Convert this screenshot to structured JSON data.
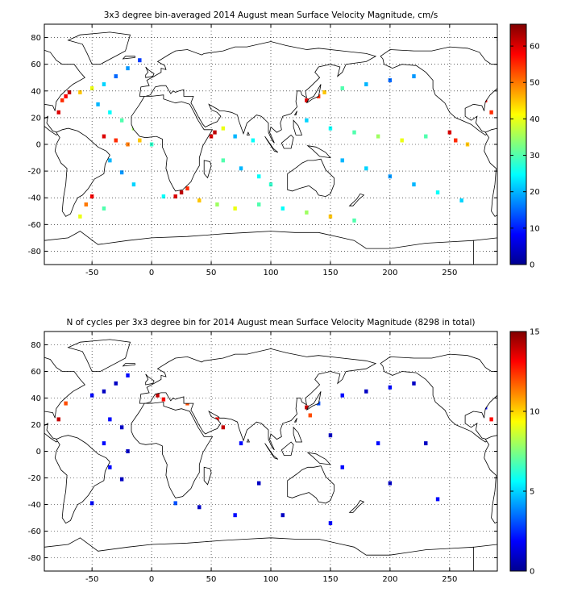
{
  "chart_data": [
    {
      "type": "heatmap",
      "title": "3x3 degree bin-averaged 2014 August mean Surface Velocity Magnitude, cm/s",
      "xlabel": "",
      "ylabel": "",
      "xlim": [
        -90,
        290
      ],
      "ylim": [
        -90,
        90
      ],
      "xticks": [
        -50,
        0,
        50,
        100,
        150,
        200,
        250
      ],
      "yticks": [
        80,
        60,
        40,
        20,
        0,
        -20,
        -40,
        -60,
        -80
      ],
      "grid": true,
      "colorbar": {
        "range": [
          0,
          66
        ],
        "ticks": [
          0,
          10,
          20,
          30,
          40,
          50,
          60
        ]
      },
      "bin_size_deg": 3,
      "cells": [
        {
          "lon": -78,
          "lat": 24,
          "value": 60
        },
        {
          "lon": -75,
          "lat": 33,
          "value": 55
        },
        {
          "lon": -72,
          "lat": 36,
          "value": 58
        },
        {
          "lon": -69,
          "lat": 39,
          "value": 62
        },
        {
          "lon": -60,
          "lat": 39,
          "value": 45
        },
        {
          "lon": -50,
          "lat": 42,
          "value": 40
        },
        {
          "lon": -40,
          "lat": 45,
          "value": 22
        },
        {
          "lon": -30,
          "lat": 51,
          "value": 15
        },
        {
          "lon": -20,
          "lat": 57,
          "value": 18
        },
        {
          "lon": -10,
          "lat": 63,
          "value": 12
        },
        {
          "lon": -45,
          "lat": 30,
          "value": 20
        },
        {
          "lon": -35,
          "lat": 24,
          "value": 25
        },
        {
          "lon": -25,
          "lat": 18,
          "value": 30
        },
        {
          "lon": -15,
          "lat": 12,
          "value": 35
        },
        {
          "lon": -40,
          "lat": 6,
          "value": 60
        },
        {
          "lon": -30,
          "lat": 3,
          "value": 55
        },
        {
          "lon": -20,
          "lat": 0,
          "value": 50
        },
        {
          "lon": -10,
          "lat": 3,
          "value": 45
        },
        {
          "lon": 0,
          "lat": 0,
          "value": 28
        },
        {
          "lon": -35,
          "lat": -12,
          "value": 20
        },
        {
          "lon": -25,
          "lat": -21,
          "value": 18
        },
        {
          "lon": -15,
          "lat": -30,
          "value": 22
        },
        {
          "lon": -50,
          "lat": -39,
          "value": 58
        },
        {
          "lon": -55,
          "lat": -45,
          "value": 50
        },
        {
          "lon": -60,
          "lat": -54,
          "value": 40
        },
        {
          "lon": -40,
          "lat": -48,
          "value": 30
        },
        {
          "lon": 10,
          "lat": -39,
          "value": 25
        },
        {
          "lon": 20,
          "lat": -39,
          "value": 60
        },
        {
          "lon": 25,
          "lat": -36,
          "value": 62
        },
        {
          "lon": 30,
          "lat": -33,
          "value": 55
        },
        {
          "lon": 40,
          "lat": -42,
          "value": 45
        },
        {
          "lon": 55,
          "lat": -45,
          "value": 35
        },
        {
          "lon": 70,
          "lat": -48,
          "value": 40
        },
        {
          "lon": 90,
          "lat": -45,
          "value": 30
        },
        {
          "lon": 110,
          "lat": -48,
          "value": 25
        },
        {
          "lon": 130,
          "lat": -51,
          "value": 35
        },
        {
          "lon": 150,
          "lat": -54,
          "value": 45
        },
        {
          "lon": 170,
          "lat": -57,
          "value": 30
        },
        {
          "lon": 50,
          "lat": 6,
          "value": 60
        },
        {
          "lon": 53,
          "lat": 9,
          "value": 62
        },
        {
          "lon": 60,
          "lat": 12,
          "value": 40
        },
        {
          "lon": 70,
          "lat": 6,
          "value": 20
        },
        {
          "lon": 85,
          "lat": 3,
          "value": 25
        },
        {
          "lon": 60,
          "lat": -12,
          "value": 30
        },
        {
          "lon": 75,
          "lat": -18,
          "value": 20
        },
        {
          "lon": 90,
          "lat": -24,
          "value": 25
        },
        {
          "lon": 100,
          "lat": -30,
          "value": 28
        },
        {
          "lon": 130,
          "lat": 33,
          "value": 60
        },
        {
          "lon": 140,
          "lat": 36,
          "value": 55
        },
        {
          "lon": 145,
          "lat": 39,
          "value": 45
        },
        {
          "lon": 160,
          "lat": 42,
          "value": 30
        },
        {
          "lon": 180,
          "lat": 45,
          "value": 20
        },
        {
          "lon": 200,
          "lat": 48,
          "value": 15
        },
        {
          "lon": 220,
          "lat": 51,
          "value": 18
        },
        {
          "lon": 130,
          "lat": 18,
          "value": 22
        },
        {
          "lon": 150,
          "lat": 12,
          "value": 25
        },
        {
          "lon": 170,
          "lat": 9,
          "value": 30
        },
        {
          "lon": 190,
          "lat": 6,
          "value": 35
        },
        {
          "lon": 210,
          "lat": 3,
          "value": 40
        },
        {
          "lon": 230,
          "lat": 6,
          "value": 30
        },
        {
          "lon": 250,
          "lat": 9,
          "value": 60
        },
        {
          "lon": 255,
          "lat": 3,
          "value": 55
        },
        {
          "lon": 265,
          "lat": 0,
          "value": 45
        },
        {
          "lon": 160,
          "lat": -12,
          "value": 20
        },
        {
          "lon": 180,
          "lat": -18,
          "value": 22
        },
        {
          "lon": 200,
          "lat": -24,
          "value": 18
        },
        {
          "lon": 220,
          "lat": -30,
          "value": 20
        },
        {
          "lon": 240,
          "lat": -36,
          "value": 25
        },
        {
          "lon": 260,
          "lat": -42,
          "value": 22
        },
        {
          "lon": 280,
          "lat": 33,
          "value": 60
        },
        {
          "lon": 285,
          "lat": 24,
          "value": 55
        }
      ]
    },
    {
      "type": "heatmap",
      "title": "N of cycles per 3x3 degree bin for 2014 August mean Surface Velocity Magnitude (8298 in total)",
      "xlabel": "",
      "ylabel": "",
      "xlim": [
        -90,
        290
      ],
      "ylim": [
        -90,
        90
      ],
      "xticks": [
        -50,
        0,
        50,
        100,
        150,
        200,
        250
      ],
      "yticks": [
        80,
        60,
        40,
        20,
        0,
        -20,
        -40,
        -60,
        -80
      ],
      "grid": true,
      "colorbar": {
        "range": [
          0,
          15
        ],
        "ticks": [
          0,
          5,
          10,
          15
        ]
      },
      "bin_size_deg": 3,
      "cells": [
        {
          "lon": -78,
          "lat": 24,
          "value": 14
        },
        {
          "lon": -72,
          "lat": 36,
          "value": 12
        },
        {
          "lon": -50,
          "lat": 42,
          "value": 2
        },
        {
          "lon": -40,
          "lat": 45,
          "value": 1
        },
        {
          "lon": -30,
          "lat": 51,
          "value": 1
        },
        {
          "lon": -20,
          "lat": 57,
          "value": 2
        },
        {
          "lon": 5,
          "lat": 42,
          "value": 14
        },
        {
          "lon": 10,
          "lat": 39,
          "value": 13
        },
        {
          "lon": 30,
          "lat": 36,
          "value": 12
        },
        {
          "lon": 35,
          "lat": 42,
          "value": 14
        },
        {
          "lon": -35,
          "lat": 24,
          "value": 2
        },
        {
          "lon": -25,
          "lat": 18,
          "value": 1
        },
        {
          "lon": -40,
          "lat": 6,
          "value": 2
        },
        {
          "lon": -20,
          "lat": 0,
          "value": 1
        },
        {
          "lon": -35,
          "lat": -12,
          "value": 2
        },
        {
          "lon": -25,
          "lat": -21,
          "value": 1
        },
        {
          "lon": -50,
          "lat": -39,
          "value": 2
        },
        {
          "lon": 20,
          "lat": -39,
          "value": 3
        },
        {
          "lon": 40,
          "lat": -42,
          "value": 1
        },
        {
          "lon": 70,
          "lat": -48,
          "value": 2
        },
        {
          "lon": 110,
          "lat": -48,
          "value": 1
        },
        {
          "lon": 150,
          "lat": -54,
          "value": 2
        },
        {
          "lon": 55,
          "lat": 24,
          "value": 13
        },
        {
          "lon": 60,
          "lat": 18,
          "value": 14
        },
        {
          "lon": 75,
          "lat": 6,
          "value": 2
        },
        {
          "lon": 90,
          "lat": -24,
          "value": 1
        },
        {
          "lon": 130,
          "lat": 33,
          "value": 14
        },
        {
          "lon": 133,
          "lat": 27,
          "value": 12
        },
        {
          "lon": 140,
          "lat": 36,
          "value": 3
        },
        {
          "lon": 160,
          "lat": 42,
          "value": 2
        },
        {
          "lon": 180,
          "lat": 45,
          "value": 1
        },
        {
          "lon": 200,
          "lat": 48,
          "value": 2
        },
        {
          "lon": 220,
          "lat": 51,
          "value": 1
        },
        {
          "lon": 150,
          "lat": 12,
          "value": 1
        },
        {
          "lon": 190,
          "lat": 6,
          "value": 2
        },
        {
          "lon": 230,
          "lat": 6,
          "value": 1
        },
        {
          "lon": 160,
          "lat": -12,
          "value": 2
        },
        {
          "lon": 200,
          "lat": -24,
          "value": 1
        },
        {
          "lon": 240,
          "lat": -36,
          "value": 2
        },
        {
          "lon": 285,
          "lat": 24,
          "value": 13
        },
        {
          "lon": 280,
          "lat": 33,
          "value": 2
        }
      ]
    }
  ]
}
